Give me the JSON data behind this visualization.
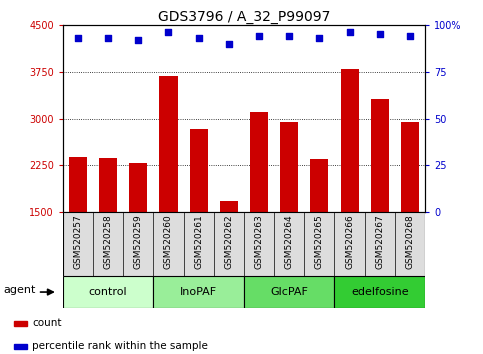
{
  "title": "GDS3796 / A_32_P99097",
  "samples": [
    "GSM520257",
    "GSM520258",
    "GSM520259",
    "GSM520260",
    "GSM520261",
    "GSM520262",
    "GSM520263",
    "GSM520264",
    "GSM520265",
    "GSM520266",
    "GSM520267",
    "GSM520268"
  ],
  "counts": [
    2390,
    2370,
    2290,
    3680,
    2840,
    1680,
    3100,
    2950,
    2350,
    3800,
    3320,
    2950
  ],
  "percentiles": [
    93,
    93,
    92,
    96,
    93,
    90,
    94,
    94,
    93,
    96,
    95,
    94
  ],
  "groups": [
    {
      "label": "control",
      "start": 0,
      "end": 2,
      "color": "#ccffcc"
    },
    {
      "label": "InoPAF",
      "start": 3,
      "end": 5,
      "color": "#99ee99"
    },
    {
      "label": "GlcPAF",
      "start": 6,
      "end": 8,
      "color": "#66dd66"
    },
    {
      "label": "edelfosine",
      "start": 9,
      "end": 11,
      "color": "#33cc33"
    }
  ],
  "bar_color": "#cc0000",
  "dot_color": "#0000cc",
  "ylim_left": [
    1500,
    4500
  ],
  "ylim_right": [
    0,
    100
  ],
  "yticks_left": [
    1500,
    2250,
    3000,
    3750,
    4500
  ],
  "yticks_right": [
    0,
    25,
    50,
    75,
    100
  ],
  "grid_vals": [
    2250,
    3000,
    3750
  ],
  "legend_items": [
    {
      "color": "#cc0000",
      "label": "count"
    },
    {
      "color": "#0000cc",
      "label": "percentile rank within the sample"
    }
  ],
  "agent_label": "agent",
  "sample_bg": "#dddddd",
  "title_fontsize": 10,
  "tick_fontsize": 7,
  "sample_fontsize": 6.5,
  "group_fontsize": 8,
  "legend_fontsize": 7.5
}
